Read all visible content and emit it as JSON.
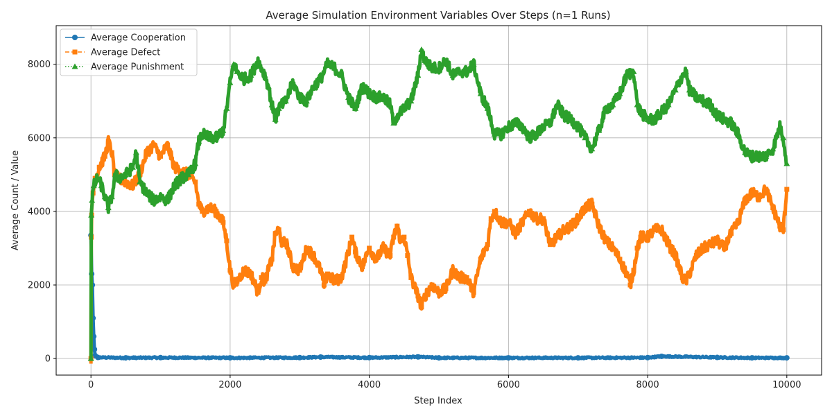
{
  "chart_data": {
    "type": "line",
    "title": "Average Simulation Environment Variables Over Steps (n=1 Runs)",
    "xlabel": "Step Index",
    "ylabel": "Average Count / Value",
    "xlim": [
      -500,
      10500
    ],
    "ylim": [
      -450,
      9050
    ],
    "xticks": [
      0,
      2000,
      4000,
      6000,
      8000,
      10000
    ],
    "yticks": [
      0,
      2000,
      4000,
      6000,
      8000
    ],
    "grid": true,
    "legend_position": "top-left",
    "series": [
      {
        "name": "Average Cooperation",
        "color": "#1f77b4",
        "linestyle": "solid",
        "marker": "circle",
        "points": [
          [
            0,
            3350
          ],
          [
            10,
            2300
          ],
          [
            20,
            2000
          ],
          [
            30,
            1100
          ],
          [
            40,
            600
          ],
          [
            50,
            250
          ],
          [
            60,
            80
          ],
          [
            100,
            30
          ],
          [
            500,
            20
          ],
          [
            1000,
            25
          ],
          [
            2000,
            20
          ],
          [
            3000,
            25
          ],
          [
            3300,
            40
          ],
          [
            4000,
            25
          ],
          [
            4700,
            45
          ],
          [
            5000,
            20
          ],
          [
            6000,
            20
          ],
          [
            7000,
            20
          ],
          [
            8000,
            25
          ],
          [
            8200,
            60
          ],
          [
            9000,
            30
          ],
          [
            9500,
            20
          ],
          [
            10000,
            20
          ]
        ]
      },
      {
        "name": "Average Defect",
        "color": "#ff7f0e",
        "linestyle": "dashed",
        "marker": "square",
        "points": [
          [
            0,
            0
          ],
          [
            5,
            3300
          ],
          [
            10,
            3900
          ],
          [
            30,
            4500
          ],
          [
            60,
            4900
          ],
          [
            120,
            5200
          ],
          [
            200,
            5500
          ],
          [
            250,
            5900
          ],
          [
            300,
            5600
          ],
          [
            340,
            5000
          ],
          [
            400,
            4900
          ],
          [
            500,
            4800
          ],
          [
            600,
            4700
          ],
          [
            700,
            5000
          ],
          [
            800,
            5600
          ],
          [
            900,
            5800
          ],
          [
            1000,
            5500
          ],
          [
            1100,
            5800
          ],
          [
            1200,
            5200
          ],
          [
            1300,
            5100
          ],
          [
            1400,
            5000
          ],
          [
            1500,
            4800
          ],
          [
            1550,
            4200
          ],
          [
            1600,
            4000
          ],
          [
            1700,
            4100
          ],
          [
            1800,
            4000
          ],
          [
            1900,
            3700
          ],
          [
            1950,
            3200
          ],
          [
            2000,
            2400
          ],
          [
            2050,
            2000
          ],
          [
            2100,
            2100
          ],
          [
            2200,
            2400
          ],
          [
            2300,
            2300
          ],
          [
            2400,
            1800
          ],
          [
            2450,
            2200
          ],
          [
            2500,
            2100
          ],
          [
            2600,
            2700
          ],
          [
            2650,
            3400
          ],
          [
            2700,
            3500
          ],
          [
            2750,
            3100
          ],
          [
            2800,
            3200
          ],
          [
            2900,
            2500
          ],
          [
            3000,
            2400
          ],
          [
            3100,
            3000
          ],
          [
            3200,
            2800
          ],
          [
            3300,
            2400
          ],
          [
            3350,
            2000
          ],
          [
            3400,
            2300
          ],
          [
            3500,
            2100
          ],
          [
            3600,
            2200
          ],
          [
            3700,
            2900
          ],
          [
            3750,
            3300
          ],
          [
            3800,
            2900
          ],
          [
            3900,
            2500
          ],
          [
            4000,
            3000
          ],
          [
            4100,
            2700
          ],
          [
            4200,
            3000
          ],
          [
            4300,
            2800
          ],
          [
            4350,
            3300
          ],
          [
            4400,
            3600
          ],
          [
            4450,
            3200
          ],
          [
            4500,
            3300
          ],
          [
            4550,
            2800
          ],
          [
            4600,
            2200
          ],
          [
            4700,
            1700
          ],
          [
            4750,
            1400
          ],
          [
            4800,
            1700
          ],
          [
            4900,
            2000
          ],
          [
            5000,
            1800
          ],
          [
            5100,
            1900
          ],
          [
            5200,
            2400
          ],
          [
            5300,
            2200
          ],
          [
            5400,
            2200
          ],
          [
            5500,
            1800
          ],
          [
            5600,
            2700
          ],
          [
            5700,
            3100
          ],
          [
            5750,
            3800
          ],
          [
            5800,
            4000
          ],
          [
            5900,
            3700
          ],
          [
            6000,
            3700
          ],
          [
            6100,
            3400
          ],
          [
            6200,
            3700
          ],
          [
            6300,
            4000
          ],
          [
            6400,
            3800
          ],
          [
            6500,
            3800
          ],
          [
            6600,
            3100
          ],
          [
            6700,
            3300
          ],
          [
            6800,
            3500
          ],
          [
            6900,
            3600
          ],
          [
            7000,
            3800
          ],
          [
            7100,
            4100
          ],
          [
            7200,
            4200
          ],
          [
            7300,
            3600
          ],
          [
            7400,
            3200
          ],
          [
            7500,
            3000
          ],
          [
            7600,
            2700
          ],
          [
            7700,
            2300
          ],
          [
            7750,
            2000
          ],
          [
            7800,
            2400
          ],
          [
            7850,
            3000
          ],
          [
            7900,
            3300
          ],
          [
            8000,
            3300
          ],
          [
            8100,
            3500
          ],
          [
            8200,
            3500
          ],
          [
            8300,
            3100
          ],
          [
            8400,
            2800
          ],
          [
            8500,
            2200
          ],
          [
            8550,
            2100
          ],
          [
            8600,
            2300
          ],
          [
            8700,
            2800
          ],
          [
            8800,
            3000
          ],
          [
            8900,
            3100
          ],
          [
            9000,
            3200
          ],
          [
            9100,
            3000
          ],
          [
            9200,
            3400
          ],
          [
            9300,
            3700
          ],
          [
            9400,
            4300
          ],
          [
            9500,
            4500
          ],
          [
            9600,
            4400
          ],
          [
            9700,
            4600
          ],
          [
            9800,
            4100
          ],
          [
            9900,
            3600
          ],
          [
            9950,
            3500
          ],
          [
            10000,
            4600
          ]
        ]
      },
      {
        "name": "Average Punishment",
        "color": "#2ca02c",
        "linestyle": "dotted",
        "marker": "triangle",
        "points": [
          [
            0,
            0
          ],
          [
            5,
            3900
          ],
          [
            15,
            4300
          ],
          [
            40,
            4700
          ],
          [
            100,
            4900
          ],
          [
            150,
            4700
          ],
          [
            200,
            4400
          ],
          [
            250,
            4100
          ],
          [
            300,
            4400
          ],
          [
            350,
            5000
          ],
          [
            400,
            4900
          ],
          [
            500,
            5000
          ],
          [
            600,
            5200
          ],
          [
            650,
            5600
          ],
          [
            700,
            4800
          ],
          [
            800,
            4500
          ],
          [
            900,
            4300
          ],
          [
            1000,
            4400
          ],
          [
            1100,
            4300
          ],
          [
            1200,
            4700
          ],
          [
            1300,
            4900
          ],
          [
            1400,
            5000
          ],
          [
            1500,
            5300
          ],
          [
            1550,
            5900
          ],
          [
            1600,
            6100
          ],
          [
            1700,
            6000
          ],
          [
            1800,
            6000
          ],
          [
            1900,
            6200
          ],
          [
            1950,
            6800
          ],
          [
            2000,
            7500
          ],
          [
            2050,
            8000
          ],
          [
            2100,
            7800
          ],
          [
            2200,
            7600
          ],
          [
            2300,
            7700
          ],
          [
            2400,
            8100
          ],
          [
            2500,
            7700
          ],
          [
            2550,
            7400
          ],
          [
            2600,
            6900
          ],
          [
            2650,
            6500
          ],
          [
            2700,
            6800
          ],
          [
            2800,
            7000
          ],
          [
            2900,
            7500
          ],
          [
            3000,
            7100
          ],
          [
            3100,
            7000
          ],
          [
            3200,
            7400
          ],
          [
            3300,
            7600
          ],
          [
            3400,
            8000
          ],
          [
            3500,
            7900
          ],
          [
            3600,
            7700
          ],
          [
            3700,
            7100
          ],
          [
            3800,
            6800
          ],
          [
            3900,
            7400
          ],
          [
            4000,
            7200
          ],
          [
            4100,
            7100
          ],
          [
            4200,
            7100
          ],
          [
            4300,
            6900
          ],
          [
            4350,
            6400
          ],
          [
            4400,
            6600
          ],
          [
            4500,
            6800
          ],
          [
            4600,
            7000
          ],
          [
            4700,
            7700
          ],
          [
            4750,
            8400
          ],
          [
            4800,
            8100
          ],
          [
            4900,
            7900
          ],
          [
            5000,
            7900
          ],
          [
            5100,
            8100
          ],
          [
            5200,
            7700
          ],
          [
            5300,
            7800
          ],
          [
            5400,
            7800
          ],
          [
            5500,
            8000
          ],
          [
            5600,
            7200
          ],
          [
            5700,
            6800
          ],
          [
            5800,
            6100
          ],
          [
            5900,
            6100
          ],
          [
            6000,
            6300
          ],
          [
            6100,
            6400
          ],
          [
            6200,
            6300
          ],
          [
            6300,
            6000
          ],
          [
            6400,
            6100
          ],
          [
            6500,
            6300
          ],
          [
            6600,
            6400
          ],
          [
            6700,
            6900
          ],
          [
            6800,
            6600
          ],
          [
            6900,
            6500
          ],
          [
            7000,
            6300
          ],
          [
            7100,
            6000
          ],
          [
            7200,
            5700
          ],
          [
            7300,
            6200
          ],
          [
            7400,
            6800
          ],
          [
            7500,
            6900
          ],
          [
            7600,
            7200
          ],
          [
            7700,
            7700
          ],
          [
            7800,
            7800
          ],
          [
            7850,
            6900
          ],
          [
            7900,
            6700
          ],
          [
            8000,
            6500
          ],
          [
            8100,
            6500
          ],
          [
            8200,
            6700
          ],
          [
            8300,
            6900
          ],
          [
            8400,
            7300
          ],
          [
            8500,
            7700
          ],
          [
            8550,
            7800
          ],
          [
            8600,
            7300
          ],
          [
            8700,
            7100
          ],
          [
            8800,
            7000
          ],
          [
            8900,
            6900
          ],
          [
            9000,
            6600
          ],
          [
            9100,
            6500
          ],
          [
            9200,
            6400
          ],
          [
            9300,
            6100
          ],
          [
            9400,
            5600
          ],
          [
            9500,
            5500
          ],
          [
            9600,
            5500
          ],
          [
            9700,
            5500
          ],
          [
            9800,
            5700
          ],
          [
            9900,
            6300
          ],
          [
            9950,
            6000
          ],
          [
            10000,
            5300
          ]
        ]
      }
    ]
  }
}
